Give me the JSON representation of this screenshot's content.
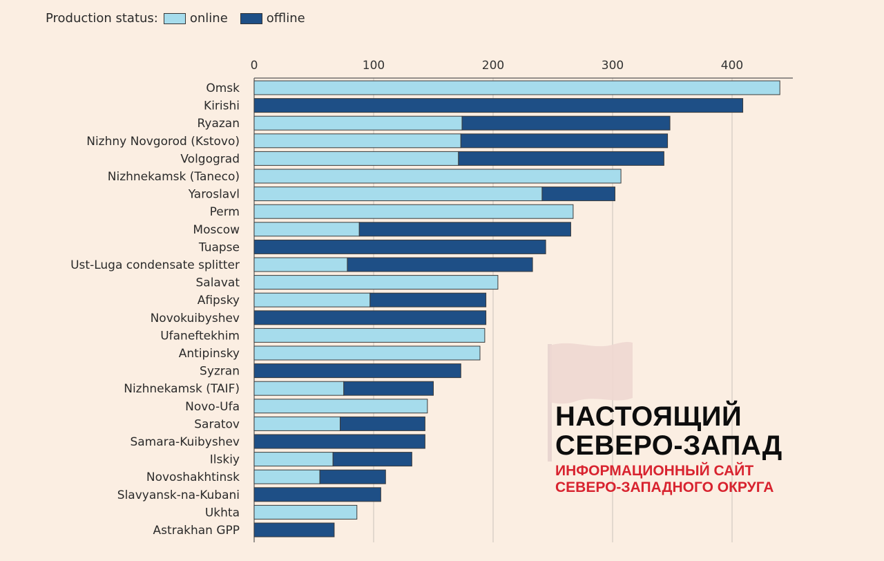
{
  "legend": {
    "title": "Production status:",
    "items": [
      {
        "label": "online",
        "color": "#a6dcec"
      },
      {
        "label": "offline",
        "color": "#1e4f86"
      }
    ]
  },
  "watermark": {
    "title_line1": "НАСТОЯЩИЙ",
    "title_line2": "СЕВЕРО-ЗАПАД",
    "subtitle_line1": "ИНФОРМАЦИОННЫЙ САЙТ",
    "subtitle_line2": "СЕВЕРО-ЗАПАДНОГО ОКРУГА"
  },
  "chart_data": {
    "type": "bar",
    "orientation": "horizontal",
    "stacked": true,
    "xlim": [
      0,
      450
    ],
    "xticks": [
      0,
      100,
      200,
      300,
      400
    ],
    "grid": true,
    "legend_position": "top-left",
    "categories": [
      "Omsk",
      "Kirishi",
      "Ryazan",
      "Nizhny Novgorod (Kstovo)",
      "Volgograd",
      "Nizhnekamsk (Taneco)",
      "Yaroslavl",
      "Perm",
      "Moscow",
      "Tuapse",
      "Ust-Luga condensate splitter",
      "Salavat",
      "Afipsky",
      "Novokuibyshev",
      "Ufaneftekhim",
      "Antipinsky",
      "Syzran",
      "Nizhnekamsk (TAIF)",
      "Novo-Ufa",
      "Saratov",
      "Samara-Kuibyshev",
      "Ilskiy",
      "Novoshakhtinsk",
      "Slavyansk-na-Kubani",
      "Ukhta",
      "Astrakhan GPP"
    ],
    "series": [
      {
        "name": "online",
        "color": "#a6dcec",
        "values": [
          440,
          0,
          174,
          173,
          171,
          307,
          241,
          267,
          88,
          0,
          78,
          204,
          97,
          0,
          193,
          189,
          0,
          75,
          145,
          72,
          0,
          66,
          55,
          0,
          86,
          0
        ]
      },
      {
        "name": "offline",
        "color": "#1e4f86",
        "values": [
          0,
          409,
          174,
          173,
          172,
          0,
          61,
          0,
          177,
          244,
          155,
          0,
          97,
          194,
          0,
          0,
          173,
          75,
          0,
          71,
          143,
          66,
          55,
          106,
          0,
          67
        ]
      }
    ]
  }
}
